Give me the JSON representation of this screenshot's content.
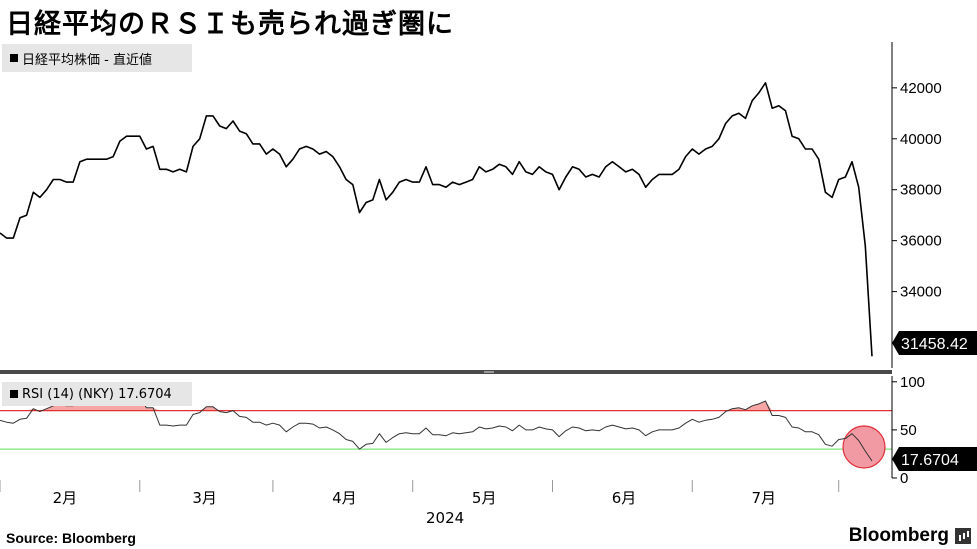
{
  "title": "日経平均のＲＳＩも売られ過ぎ圏に",
  "footer": {
    "source": "Source:  Bloomberg",
    "brand": "Bloomberg"
  },
  "chart_data": [
    {
      "type": "line",
      "legend": "日経平均株価  - 直近値",
      "last_value_label": "31458.42",
      "ylim": [
        31000,
        43800
      ],
      "yticks": [
        32000,
        34000,
        36000,
        38000,
        40000,
        42000
      ],
      "ytick_labels": [
        "32000",
        "34000",
        "36000",
        "38000",
        "40000",
        "42000"
      ],
      "grid": false,
      "series": [
        {
          "color": "#000000",
          "values": [
            36300,
            36100,
            36100,
            36900,
            37000,
            37900,
            37700,
            38000,
            38400,
            38400,
            38300,
            38300,
            39100,
            39200,
            39200,
            39200,
            39200,
            39300,
            39900,
            40100,
            40100,
            40100,
            39600,
            39700,
            38800,
            38800,
            38700,
            38800,
            38700,
            39700,
            40000,
            40900,
            40900,
            40500,
            40400,
            40700,
            40300,
            40200,
            39800,
            39800,
            39400,
            39600,
            39400,
            38900,
            39200,
            39600,
            39700,
            39600,
            39400,
            39500,
            39300,
            38900,
            38400,
            38200,
            37100,
            37500,
            37600,
            38400,
            37600,
            37900,
            38300,
            38400,
            38300,
            38300,
            38900,
            38200,
            38200,
            38100,
            38300,
            38200,
            38300,
            38400,
            38900,
            38700,
            38800,
            39000,
            38900,
            38600,
            39100,
            38700,
            38600,
            38900,
            38700,
            38600,
            38000,
            38500,
            38900,
            38800,
            38500,
            38600,
            38500,
            38900,
            39100,
            38900,
            38700,
            38800,
            38600,
            38100,
            38400,
            38600,
            38600,
            38600,
            38800,
            39300,
            39600,
            39400,
            39600,
            39700,
            40000,
            40600,
            40900,
            41000,
            40800,
            41500,
            41800,
            42200,
            41200,
            41300,
            41100,
            40100,
            40000,
            39600,
            39600,
            39200,
            37900,
            37700,
            38400,
            38500,
            39100,
            38100,
            35800,
            31458
          ]
        }
      ]
    },
    {
      "type": "line",
      "legend": "RSI (14) (NKY) 17.6704",
      "last_value_label": "17.6704",
      "ylim": [
        0,
        106
      ],
      "yticks": [
        0,
        50,
        100
      ],
      "ytick_labels": [
        "0",
        "50",
        "100"
      ],
      "reference_lines": [
        {
          "value": 70,
          "color": "#e03030"
        },
        {
          "value": 30,
          "color": "#7be37b"
        }
      ],
      "grid": false,
      "series": [
        {
          "color": "#000000",
          "values": [
            60,
            58,
            57,
            61,
            62,
            72,
            69,
            72,
            75,
            76,
            75,
            75,
            80,
            81,
            80,
            80,
            79,
            80,
            84,
            86,
            85,
            85,
            73,
            73,
            55,
            55,
            54,
            55,
            55,
            66,
            68,
            74,
            74,
            69,
            68,
            70,
            64,
            63,
            58,
            58,
            55,
            57,
            55,
            48,
            53,
            57,
            57,
            56,
            52,
            53,
            50,
            46,
            40,
            38,
            30,
            35,
            36,
            46,
            37,
            42,
            46,
            47,
            46,
            46,
            52,
            45,
            45,
            44,
            47,
            46,
            47,
            48,
            53,
            51,
            52,
            54,
            53,
            49,
            55,
            50,
            50,
            53,
            51,
            50,
            43,
            49,
            53,
            52,
            49,
            50,
            49,
            53,
            55,
            53,
            51,
            52,
            50,
            44,
            48,
            50,
            50,
            50,
            52,
            57,
            61,
            58,
            60,
            61,
            63,
            69,
            72,
            73,
            71,
            75,
            77,
            80,
            65,
            65,
            63,
            53,
            52,
            48,
            48,
            45,
            35,
            33,
            40,
            41,
            46,
            39,
            28,
            17.67
          ]
        }
      ]
    }
  ],
  "x_axis": {
    "labels": [
      "2月",
      "3月",
      "4月",
      "5月",
      "6月",
      "7月"
    ],
    "year_label": "2024"
  },
  "colors": {
    "line": "#000000",
    "overbought": "#e03030",
    "oversold": "#7be37b",
    "shade_above": "#f7a6a6",
    "highlight_fill": "#f29aa4",
    "highlight_stroke": "#e0303a",
    "divider": "#4a4a4a"
  }
}
